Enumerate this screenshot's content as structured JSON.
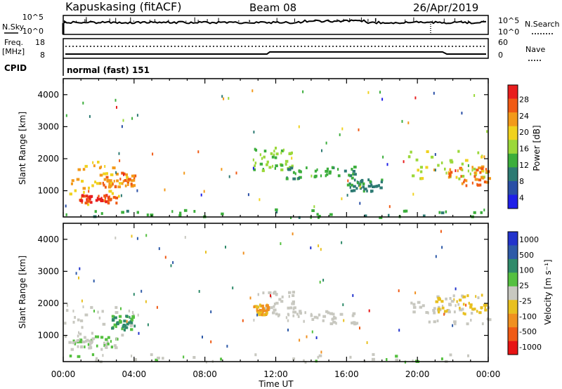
{
  "header": {
    "station": "Kapuskasing (fitACF)",
    "beam": "Beam 08",
    "date": "26/Apr/2019"
  },
  "left_labels": {
    "nsky": "N.Sky",
    "nsky_top": "10^5",
    "nsky_bottom": "10^0",
    "freq": "Freq.",
    "freq_unit": "[MHz]",
    "freq_top": "18",
    "freq_bottom": "8",
    "cpid": "CPID"
  },
  "right_labels": {
    "nsearch": "N.Search",
    "nsearch_top": "10^5",
    "nsearch_bottom": "10^0",
    "nave": "Nave",
    "nave_top": "60",
    "nave_bottom": "0"
  },
  "mode_text": "normal (fast) 151",
  "x_axis": {
    "label": "Time UT",
    "ticks": [
      "00:00",
      "04:00",
      "08:00",
      "12:00",
      "16:00",
      "20:00",
      "00:00"
    ]
  },
  "colors": {
    "power_scale": [
      "#1f1fe8",
      "#2a4fa6",
      "#2d7a73",
      "#3cae3c",
      "#9bd83a",
      "#f0d21e",
      "#f39a1a",
      "#f05a14",
      "#e81e1e"
    ],
    "velocity_scale": [
      "#2233cc",
      "#2e5aa8",
      "#2f8a6a",
      "#55c040",
      "#c8c8c0",
      "#e8c020",
      "#f09020",
      "#f05a14",
      "#e81414"
    ],
    "noise_line": "#000000"
  },
  "chart_data": [
    {
      "type": "heatmap",
      "name_panel": "power",
      "ylabel": "Slant Range [km]",
      "yticks": [
        "1000",
        "2000",
        "3000",
        "4000"
      ],
      "ylim": [
        180,
        4500
      ],
      "xlim": [
        0,
        24
      ],
      "colorbar": {
        "label": "Power [dB]",
        "ticks": [
          "4",
          "8",
          "12",
          "16",
          "20",
          "24",
          "28"
        ],
        "range": [
          0,
          30
        ]
      },
      "regions": [
        {
          "t0": 0.0,
          "t1": 3.9,
          "r0": 600,
          "r1": 2000,
          "val": 20
        },
        {
          "t0": 0.8,
          "t1": 3.0,
          "r0": 650,
          "r1": 900,
          "val": 28
        },
        {
          "t0": 2.0,
          "t1": 4.0,
          "r0": 1150,
          "r1": 1600,
          "val": 24
        },
        {
          "t0": 0.0,
          "t1": 24.0,
          "r0": 200,
          "r1": 450,
          "val": 10
        },
        {
          "t0": 10.7,
          "t1": 13.0,
          "r0": 1650,
          "r1": 2400,
          "val": 14
        },
        {
          "t0": 12.5,
          "t1": 16.5,
          "r0": 1400,
          "r1": 1800,
          "val": 10
        },
        {
          "t0": 16.0,
          "t1": 18.0,
          "r0": 1000,
          "r1": 1400,
          "val": 8
        },
        {
          "t0": 19.3,
          "t1": 24.0,
          "r0": 1400,
          "r1": 2300,
          "val": 16
        },
        {
          "t0": 21.5,
          "t1": 24.0,
          "r0": 1200,
          "r1": 1800,
          "val": 24
        }
      ]
    },
    {
      "type": "heatmap",
      "name_panel": "velocity",
      "ylabel": "Slant Range [km]",
      "yticks": [
        "1000",
        "2000",
        "3000",
        "4000"
      ],
      "ylim": [
        180,
        4500
      ],
      "xlim": [
        0,
        24
      ],
      "colorbar": {
        "label": "Velocity [m s⁻¹]",
        "ticks": [
          "1000",
          "500",
          "100",
          "25",
          "-25",
          "-100",
          "-500",
          "-1000"
        ],
        "range": [
          -1000,
          1000
        ]
      },
      "regions": [
        {
          "t0": 0.0,
          "t1": 4.0,
          "r0": 600,
          "r1": 2000,
          "val": 0
        },
        {
          "t0": 2.7,
          "t1": 4.0,
          "r0": 1200,
          "r1": 1700,
          "val": 400
        },
        {
          "t0": 0.5,
          "t1": 3.0,
          "r0": 650,
          "r1": 1000,
          "val": 120
        },
        {
          "t0": 0.0,
          "t1": 24.0,
          "r0": 200,
          "r1": 450,
          "val": 80
        },
        {
          "t0": 10.7,
          "t1": 13.0,
          "r0": 1650,
          "r1": 2400,
          "val": 0
        },
        {
          "t0": 10.7,
          "t1": 11.5,
          "r0": 1650,
          "r1": 2000,
          "val": -400
        },
        {
          "t0": 12.5,
          "t1": 16.5,
          "r0": 1400,
          "r1": 1800,
          "val": 0
        },
        {
          "t0": 19.3,
          "t1": 24.0,
          "r0": 1400,
          "r1": 2300,
          "val": 0
        },
        {
          "t0": 21.0,
          "t1": 24.0,
          "r0": 1700,
          "r1": 2300,
          "val": -200
        }
      ]
    }
  ]
}
